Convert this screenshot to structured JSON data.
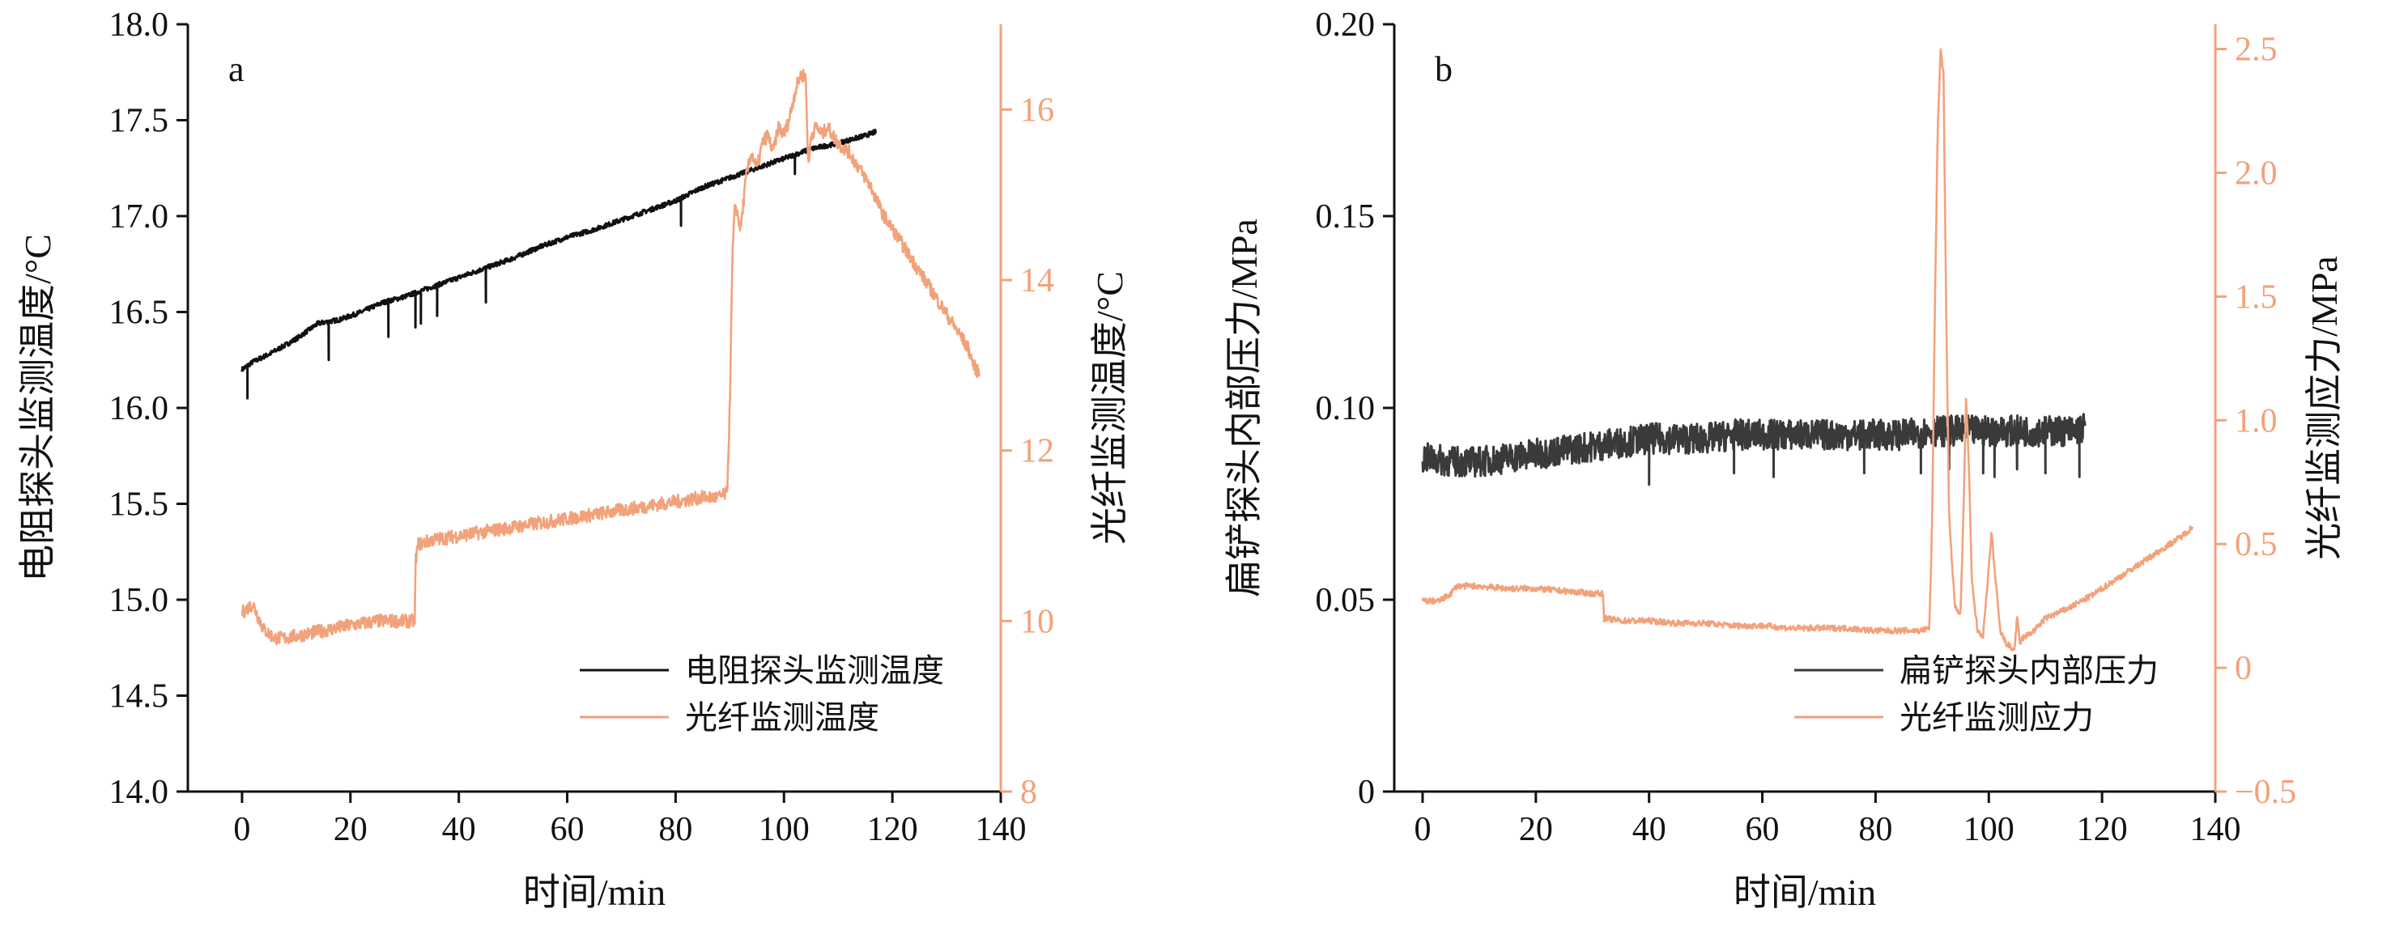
{
  "colors": {
    "black_series": "#111111",
    "gray_series": "#3a3a3a",
    "orange": "#f2a27a"
  },
  "chart_data": [
    {
      "type": "line",
      "panel_label": "a",
      "xlabel": "时间/min",
      "ylabel_left": "电阻探头监测温度/°C",
      "ylabel_right": "光纤监测温度/°C",
      "xlim": [
        -10,
        140
      ],
      "ylim_left": [
        14.0,
        18.0
      ],
      "ylim_right": [
        8,
        17
      ],
      "x_ticks": [
        "0",
        "20",
        "40",
        "60",
        "80",
        "100",
        "120",
        "140"
      ],
      "y_left_ticks": [
        "14.0",
        "14.5",
        "15.0",
        "15.5",
        "16.0",
        "16.5",
        "17.0",
        "17.5",
        "18.0"
      ],
      "y_right_ticks": [
        "8",
        "10",
        "12",
        "14",
        "16"
      ],
      "legend_position": "bottom-right",
      "series": [
        {
          "name": "电阻探头监测温度",
          "axis": "left",
          "color": "#111111",
          "x": [
            0,
            2,
            5,
            10,
            14,
            18,
            22,
            26,
            30,
            34,
            38,
            42,
            46,
            50,
            55,
            60,
            65,
            70,
            75,
            80,
            85,
            90,
            95,
            100,
            105,
            110,
            115,
            117
          ],
          "y": [
            16.2,
            16.24,
            16.28,
            16.36,
            16.44,
            16.46,
            16.5,
            16.55,
            16.58,
            16.62,
            16.66,
            16.7,
            16.74,
            16.78,
            16.84,
            16.89,
            16.93,
            16.98,
            17.03,
            17.08,
            17.15,
            17.2,
            17.25,
            17.3,
            17.35,
            17.38,
            17.42,
            17.44
          ],
          "dips": [
            {
              "x": 1,
              "y": 16.05
            },
            {
              "x": 16,
              "y": 16.25
            },
            {
              "x": 27,
              "y": 16.37
            },
            {
              "x": 32,
              "y": 16.42
            },
            {
              "x": 33,
              "y": 16.44
            },
            {
              "x": 36,
              "y": 16.48
            },
            {
              "x": 45,
              "y": 16.55
            },
            {
              "x": 81,
              "y": 16.95
            },
            {
              "x": 102,
              "y": 17.22
            }
          ]
        },
        {
          "name": "光纤监测温度",
          "axis": "right",
          "color": "#f2a27a",
          "x": [
            0,
            2,
            4,
            6,
            8,
            12,
            16,
            20,
            25,
            30,
            31.9,
            32,
            32.5,
            35,
            40,
            45,
            50,
            55,
            60,
            65,
            70,
            75,
            80,
            85,
            88,
            89.5,
            90,
            90.5,
            91,
            92,
            93,
            94,
            95,
            96,
            97,
            98,
            99,
            100,
            101,
            102,
            103,
            104,
            104.5,
            105,
            106,
            107,
            108,
            109,
            110,
            112,
            114,
            116,
            118,
            120,
            122,
            124,
            126,
            128,
            130,
            132,
            134,
            135,
            136
          ],
          "y": [
            10.1,
            10.2,
            9.9,
            9.8,
            9.8,
            9.85,
            9.9,
            9.95,
            10.0,
            10.0,
            10.0,
            10.7,
            10.9,
            10.95,
            11.0,
            11.05,
            11.1,
            11.15,
            11.2,
            11.25,
            11.3,
            11.35,
            11.4,
            11.45,
            11.45,
            11.5,
            12.5,
            14.3,
            14.9,
            14.6,
            15.2,
            15.5,
            15.3,
            15.6,
            15.7,
            15.5,
            15.8,
            15.7,
            15.9,
            16.2,
            16.4,
            16.4,
            15.3,
            15.7,
            15.8,
            15.7,
            15.8,
            15.7,
            15.6,
            15.5,
            15.3,
            15.1,
            14.8,
            14.6,
            14.4,
            14.2,
            14.0,
            13.8,
            13.6,
            13.4,
            13.2,
            13.0,
            12.9
          ]
        }
      ]
    },
    {
      "type": "line",
      "panel_label": "b",
      "xlabel": "时间/min",
      "ylabel_left": "扁铲探头内部压力/MPa",
      "ylabel_right": "光纤监测应力/MPa",
      "xlim": [
        -5,
        140
      ],
      "ylim_left": [
        0,
        0.2
      ],
      "ylim_right": [
        -0.5,
        2.6
      ],
      "x_ticks": [
        "0",
        "20",
        "40",
        "60",
        "80",
        "100",
        "120",
        "140"
      ],
      "y_left_ticks": [
        "0",
        "0.05",
        "0.10",
        "0.15",
        "0.20"
      ],
      "y_right_ticks": [
        "−0.5",
        "0",
        "0.5",
        "1.0",
        "1.5",
        "2.0",
        "2.5"
      ],
      "legend_position": "bottom-right",
      "series": [
        {
          "name": "扁铲探头内部压力",
          "axis": "left",
          "color": "#3a3a3a",
          "x": [
            0,
            5,
            10,
            15,
            20,
            25,
            30,
            35,
            40,
            45,
            50,
            55,
            60,
            65,
            70,
            75,
            80,
            85,
            90,
            95,
            100,
            105,
            110,
            115,
            117
          ],
          "y": [
            0.087,
            0.086,
            0.086,
            0.087,
            0.088,
            0.089,
            0.09,
            0.091,
            0.092,
            0.092,
            0.092,
            0.093,
            0.093,
            0.093,
            0.093,
            0.093,
            0.093,
            0.093,
            0.094,
            0.094,
            0.094,
            0.094,
            0.094,
            0.094,
            0.095
          ],
          "noise_amplitude": 0.004,
          "dips": [
            {
              "x": 40,
              "y": 0.08
            },
            {
              "x": 55,
              "y": 0.083
            },
            {
              "x": 62,
              "y": 0.082
            },
            {
              "x": 78,
              "y": 0.083
            },
            {
              "x": 88,
              "y": 0.083
            },
            {
              "x": 93,
              "y": 0.084
            },
            {
              "x": 99,
              "y": 0.083
            },
            {
              "x": 101,
              "y": 0.082
            },
            {
              "x": 105,
              "y": 0.084
            },
            {
              "x": 110,
              "y": 0.083
            },
            {
              "x": 116,
              "y": 0.082
            }
          ]
        },
        {
          "name": "光纤监测应力",
          "axis": "right",
          "color": "#f2a27a",
          "x": [
            0,
            3,
            5,
            6,
            10,
            15,
            20,
            25,
            30,
            31.9,
            32,
            35,
            40,
            45,
            50,
            55,
            60,
            65,
            70,
            75,
            80,
            85,
            88,
            89.5,
            90,
            90.5,
            91,
            91.5,
            92,
            92.5,
            93,
            94,
            95,
            95.5,
            96,
            96.5,
            97,
            98,
            99,
            100,
            100.5,
            101,
            102,
            103,
            104,
            104.5,
            105,
            105.5,
            106,
            108,
            110,
            114,
            118,
            122,
            126,
            130,
            134,
            136
          ],
          "y": [
            0.27,
            0.27,
            0.3,
            0.33,
            0.33,
            0.32,
            0.32,
            0.31,
            0.3,
            0.3,
            0.2,
            0.19,
            0.19,
            0.18,
            0.18,
            0.17,
            0.17,
            0.16,
            0.16,
            0.16,
            0.15,
            0.15,
            0.15,
            0.16,
            0.6,
            1.5,
            2.2,
            2.5,
            2.4,
            1.4,
            0.6,
            0.25,
            0.22,
            0.6,
            1.1,
            0.8,
            0.35,
            0.15,
            0.13,
            0.4,
            0.55,
            0.4,
            0.15,
            0.1,
            0.08,
            0.07,
            0.2,
            0.1,
            0.12,
            0.15,
            0.2,
            0.24,
            0.29,
            0.35,
            0.41,
            0.47,
            0.53,
            0.57
          ]
        }
      ]
    }
  ]
}
